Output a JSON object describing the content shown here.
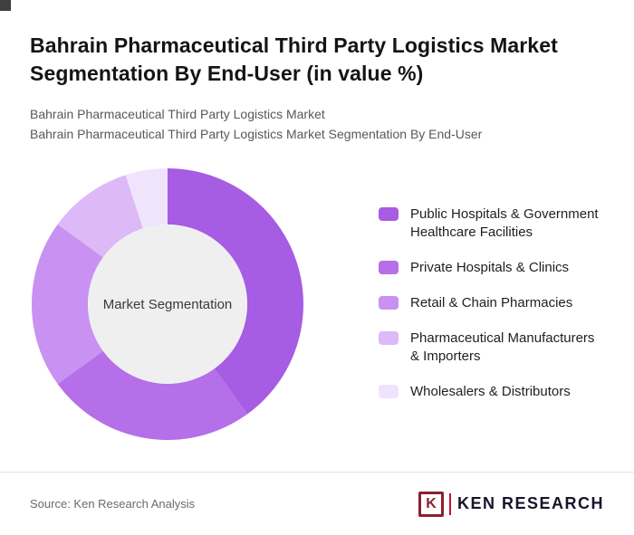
{
  "page": {
    "title": "Bahrain Pharmaceutical Third Party Logistics Market Segmentation By End-User (in value %)",
    "subtitles": [
      "Bahrain Pharmaceutical Third Party Logistics Market",
      "Bahrain Pharmaceutical Third Party Logistics Market Segmentation By End-User"
    ]
  },
  "chart_data": {
    "type": "pie",
    "variant": "donut",
    "title": "Bahrain Pharmaceutical Third Party Logistics Market Segmentation By End-User (in value %)",
    "center_label": "Market Segmentation",
    "unit": "value %",
    "legend_position": "right",
    "start_angle_deg": -90,
    "direction": "clockwise",
    "categories": [
      "Public Hospitals & Government Healthcare Facilities",
      "Private Hospitals & Clinics",
      "Retail & Chain Pharmacies",
      "Pharmaceutical Manufacturers & Importers",
      "Wholesalers & Distributors"
    ],
    "values": [
      40,
      25,
      20,
      10,
      5
    ],
    "colors": [
      "#A65CE3",
      "#B46FE9",
      "#C991F1",
      "#DDB9F7",
      "#F0E3FC"
    ],
    "center_circle_color": "#EFEFEF"
  },
  "legend": {
    "items": [
      {
        "label": "Public Hospitals & Government\nHealthcare Facilities",
        "color": "#A65CE3"
      },
      {
        "label": "Private Hospitals & Clinics",
        "color": "#B46FE9"
      },
      {
        "label": "Retail & Chain Pharmacies",
        "color": "#C991F1"
      },
      {
        "label": "Pharmaceutical Manufacturers\n& Importers",
        "color": "#DDB9F7"
      },
      {
        "label": "Wholesalers & Distributors",
        "color": "#F0E3FC"
      }
    ]
  },
  "footer": {
    "source_text": "Source: Ken Research Analysis",
    "logo": {
      "mark_letter": "K",
      "brand_text": "KEN RESEARCH",
      "mark_color": "#8E1F2E",
      "accent_color": "#C41230",
      "text_color": "#14142B"
    }
  }
}
